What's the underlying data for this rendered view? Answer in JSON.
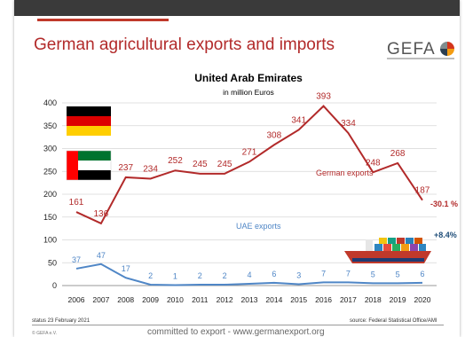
{
  "slide": {
    "title": "German agricultural exports and imports",
    "logo": "GEFA",
    "status": "status 23 February 2021",
    "source": "source: Federal Statistical Office/AMI",
    "copyright": "© GEFA e.V.",
    "slogan": "committed to export - www.germanexport.org"
  },
  "icons": [
    "germany-flag-icon",
    "uae-flag-icon",
    "container-ship-icon",
    "gefa-logo-icon"
  ],
  "colors": {
    "german_series": "#b22a2a",
    "uae_series": "#4f86c6",
    "title": "#b22a2a",
    "germany_flag": [
      "#000000",
      "#dd0000",
      "#ffce00"
    ],
    "uae_flag": [
      "#00732f",
      "#ffffff",
      "#000000",
      "#ff0000"
    ]
  },
  "chart_data": {
    "type": "line",
    "title": "United Arab Emirates",
    "subtitle": "in million Euros",
    "x": [
      "2006",
      "2007",
      "2008",
      "2009",
      "2010",
      "2011",
      "2012",
      "2013",
      "2014",
      "2015",
      "2016",
      "2017",
      "2018",
      "2019",
      "2020"
    ],
    "yticks": [
      0,
      50,
      100,
      150,
      200,
      250,
      300,
      350,
      400
    ],
    "ylim": [
      0,
      400
    ],
    "grid": true,
    "series": [
      {
        "name": "German exports",
        "values": [
          161,
          136,
          237,
          234,
          252,
          245,
          245,
          271,
          308,
          341,
          393,
          334,
          248,
          268,
          187
        ],
        "change": "-30.1 %"
      },
      {
        "name": "UAE exports",
        "values": [
          37,
          47,
          17,
          2,
          1,
          2,
          2,
          4,
          6,
          3,
          7,
          7,
          5,
          5,
          6
        ],
        "change": "+8.4%"
      }
    ]
  }
}
